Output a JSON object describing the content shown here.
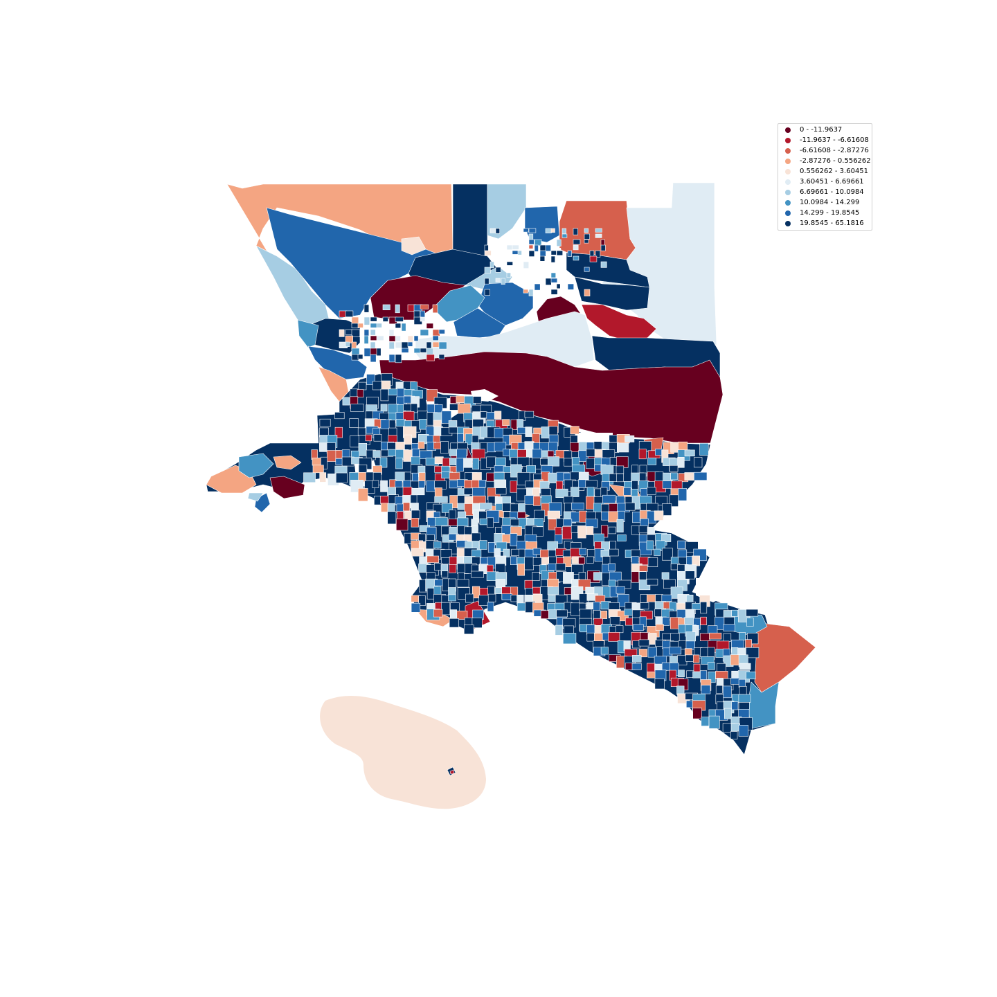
{
  "legend": {
    "items": [
      {
        "label": "0 - -11.9637",
        "color": "#67001f"
      },
      {
        "label": "-11.9637 - -6.61608",
        "color": "#b2182b"
      },
      {
        "label": "-6.61608 - -2.87276",
        "color": "#d6604d"
      },
      {
        "label": "-2.87276 - 0.556262",
        "color": "#f4a582"
      },
      {
        "label": "0.556262 - 3.60451",
        "color": "#f8e3d7"
      },
      {
        "label": "3.60451 - 6.69661",
        "color": "#e0ecf4"
      },
      {
        "label": "6.69661 - 10.0984",
        "color": "#a6cde3"
      },
      {
        "label": "10.0984 - 14.299",
        "color": "#4393c3"
      },
      {
        "label": "14.299 - 19.8545",
        "color": "#2166ac"
      },
      {
        "label": "19.8545 - 65.1816",
        "color": "#053061"
      }
    ]
  }
}
